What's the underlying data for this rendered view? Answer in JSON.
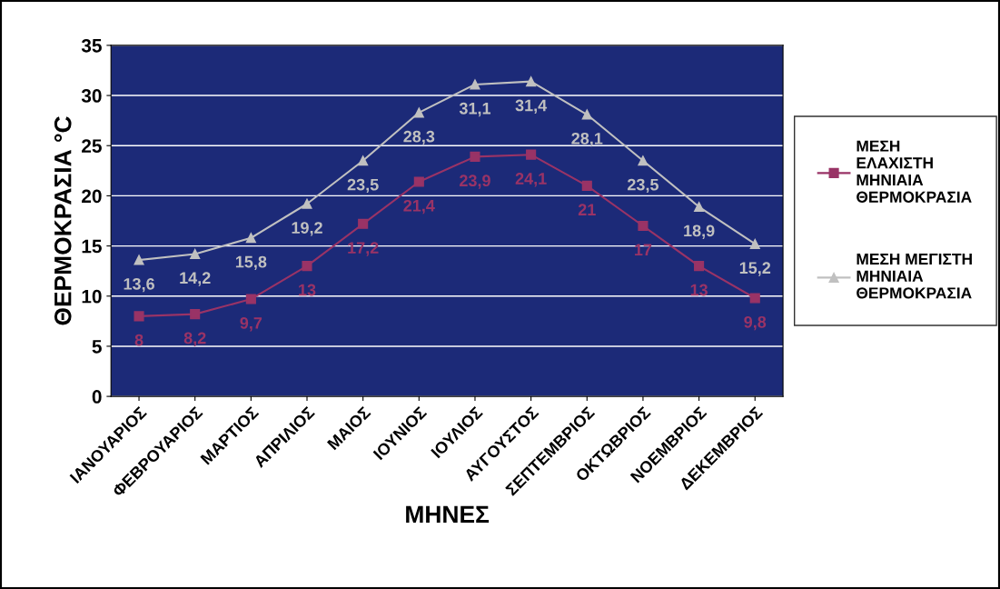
{
  "chart_data": {
    "type": "line",
    "xlabel": "ΜΗΝΕΣ",
    "ylabel": "ΘΕΡΜΟΚΡΑΣΙΑ °C",
    "categories": [
      "ΙΑΝΟΥΑΡΙΟΣ",
      "ΦΕΒΡΟΥΑΡΙΟΣ",
      "ΜΑΡΤΙΟΣ",
      "ΑΠΡΙΛΙΟΣ",
      "ΜΑΙΟΣ",
      "ΙΟΥΝΙΟΣ",
      "ΙΟΥΛΙΟΣ",
      "ΑΥΓΟΥΣΤΟΣ",
      "ΣΕΠΤΕΜΒΡΙΟΣ",
      "ΟΚΤΩΒΡΙΟΣ",
      "ΝΟΕΜΒΡΙΟΣ",
      "ΔΕΚΕΜΒΡΙΟΣ"
    ],
    "series": [
      {
        "name": "ΜΕΣΗ\nΕΛΑΧΙΣΤΗ\nΜΗΝΙΑΙΑ\nΘΕΡΜΟΚΡΑΣΙΑ",
        "color": "#993366",
        "marker": "square",
        "values": [
          8,
          8.2,
          9.7,
          13,
          17.2,
          21.4,
          23.9,
          24.1,
          21,
          17,
          13,
          9.8
        ],
        "value_labels": [
          "8",
          "8,2",
          "9,7",
          "13",
          "17,2",
          "21,4",
          "23,9",
          "24,1",
          "21",
          "17",
          "13",
          "9,8"
        ]
      },
      {
        "name": "ΜΕΣΗ ΜΕΓΙΣΤΗ\nΜΗΝΙΑΙΑ\nΘΕΡΜΟΚΡΑΣΙΑ",
        "color": "#c0c0c0",
        "marker": "triangle",
        "values": [
          13.6,
          14.2,
          15.8,
          19.2,
          23.5,
          28.3,
          31.1,
          31.4,
          28.1,
          23.5,
          18.9,
          15.2
        ],
        "value_labels": [
          "13,6",
          "14,2",
          "15,8",
          "19,2",
          "23,5",
          "28,3",
          "31,1",
          "31,4",
          "28,1",
          "23,5",
          "18,9",
          "15,2"
        ]
      }
    ],
    "ylim": [
      0,
      35
    ],
    "yticks": [
      0,
      5,
      10,
      15,
      20,
      25,
      30,
      35
    ],
    "grid": "y",
    "legend": "right",
    "line_style": "solid"
  }
}
